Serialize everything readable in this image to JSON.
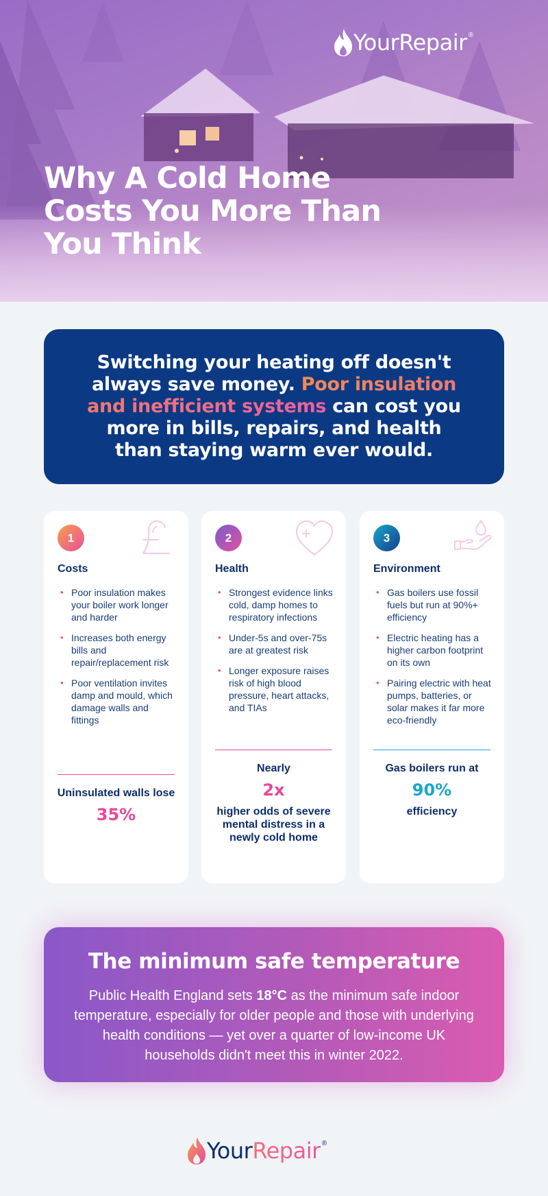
{
  "brand": {
    "name_part1": "Your",
    "name_part2": "Repair",
    "reg": "®"
  },
  "hero": {
    "title": "Why A Cold Home Costs You More Than You Think"
  },
  "intro": {
    "text_before": "Switching your heating off doesn't always save money. ",
    "highlight": "Poor insulation and inefficient systems",
    "text_after": " can cost you more in bills, repairs, and health than staying warm ever would."
  },
  "cards": [
    {
      "number": "1",
      "title": "Costs",
      "icon": "pound-sign-icon",
      "bullets": [
        "Poor insulation makes your boiler work longer and harder",
        "Increases both energy bills and repair/replacement risk",
        "Poor ventilation invites damp and mould, which damage walls and fittings"
      ],
      "stat_top": "Uninsulated walls lose",
      "stat_value": "35%",
      "stat_bottom": ""
    },
    {
      "number": "2",
      "title": "Health",
      "icon": "heart-plus-icon",
      "bullets": [
        "Strongest evidence links cold, damp homes to respiratory infections",
        "Under-5s and over-75s are at greatest risk",
        "Longer exposure raises risk of high blood pressure, heart attacks, and TIAs"
      ],
      "stat_top": "Nearly",
      "stat_value": "2x",
      "stat_bottom": "higher odds of severe mental distress in a newly cold home"
    },
    {
      "number": "3",
      "title": "Environment",
      "icon": "hand-droplet-icon",
      "bullets": [
        "Gas boilers use fossil fuels but run at 90%+ efficiency",
        "Electric heating has a higher carbon footprint on its own",
        "Pairing electric with heat pumps, batteries, or solar makes it far more eco-friendly"
      ],
      "stat_top": "Gas boilers run at",
      "stat_value": "90%",
      "stat_bottom": "efficiency"
    }
  ],
  "min_temp": {
    "title": "The minimum safe temperature",
    "text_before": "Public Health England sets ",
    "bold": "18°C",
    "text_after": " as the minimum safe indoor temperature, especially for older people and those with underlying health conditions — yet over a quarter of low-income UK households didn't meet this in winter 2022."
  },
  "colors": {
    "navy": "#0c3983",
    "pink": "#e04e9f",
    "teal": "#1aa6c9",
    "orange": "#f18a52"
  }
}
